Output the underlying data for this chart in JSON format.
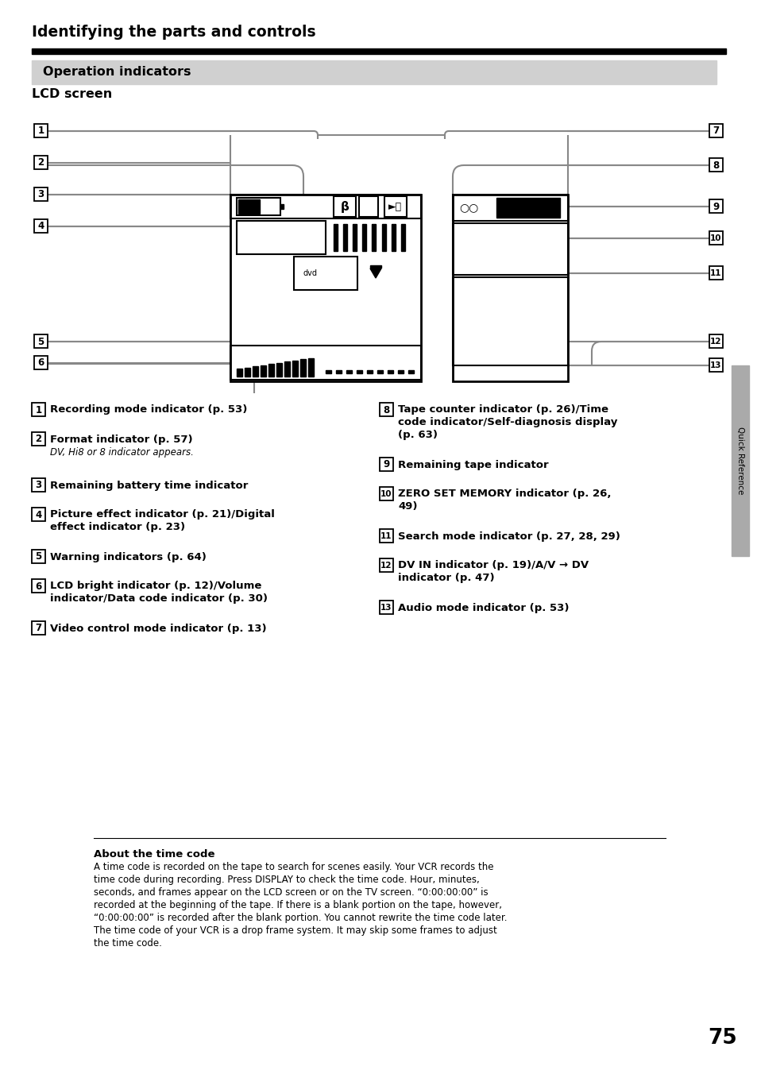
{
  "title": "Identifying the parts and controls",
  "section_title": "Operation indicators",
  "subsection_title": "LCD screen",
  "bg": "#ffffff",
  "section_bg": "#d0d0d0",
  "sidebar_bg": "#aaaaaa",
  "line_color": "#888888",
  "page_num": "75",
  "sidebar_text": "Quick Reference",
  "note_title": "About the time code",
  "note_text_lines": [
    "A time code is recorded on the tape to search for scenes easily. Your VCR records the",
    "time code during recording. Press DISPLAY to check the time code. Hour, minutes,",
    "seconds, and frames appear on the LCD screen or on the TV screen. “0:00:00:00” is",
    "recorded at the beginning of the tape. If there is a blank portion on the tape, however,",
    "“0:00:00:00” is recorded after the blank portion. You cannot rewrite the time code later.",
    "The time code of your VCR is a drop frame system. It may skip some frames to adjust",
    "the time code."
  ]
}
